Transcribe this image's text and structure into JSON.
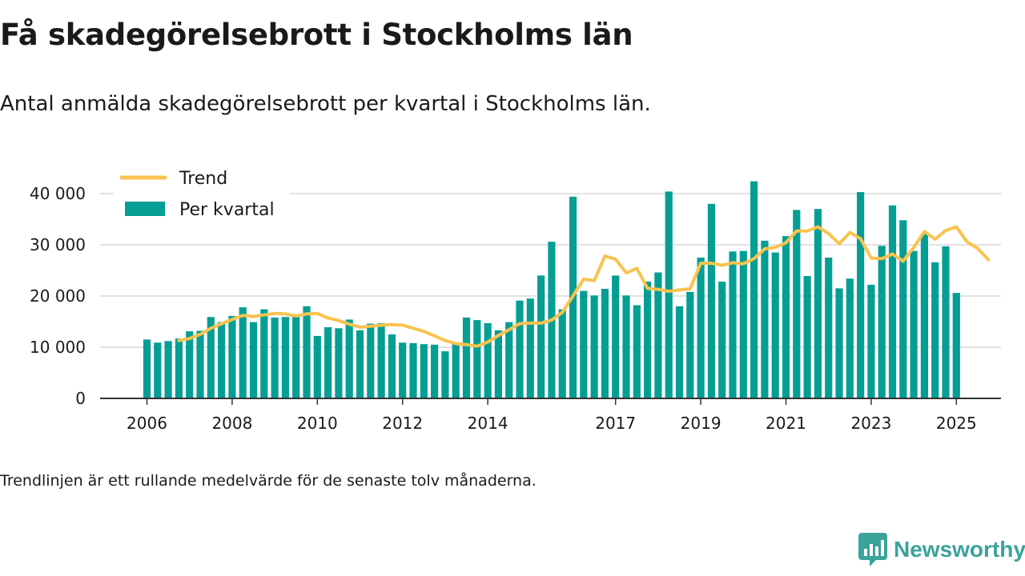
{
  "header": {
    "title": "Få skadegörelsebrott i Stockholms län",
    "subtitle": "Antal anmälda skadegörelsebrott per kvartal i Stockholms län."
  },
  "footer": {
    "note": "Trendlinjen är ett rullande medelvärde för de senaste tolv månaderna.",
    "brand": "Newsworthy"
  },
  "colors": {
    "bar": "#069e94",
    "trend": "#f8c350",
    "grid": "#d9d9d9",
    "axis": "#333333",
    "brand": "#3aa39a"
  },
  "chart_data": {
    "type": "bar",
    "x_unit": "quarter",
    "start_quarter": "2006 Q1",
    "yticks": [
      0,
      10000,
      20000,
      30000,
      40000
    ],
    "ytick_labels": [
      "0",
      "10 000",
      "20 000",
      "30 000",
      "40 000"
    ],
    "xtick_labels": [
      {
        "year": 2006,
        "label": "2006"
      },
      {
        "year": 2008,
        "label": "2008"
      },
      {
        "year": 2010,
        "label": "2010"
      },
      {
        "year": 2012,
        "label": "2012"
      },
      {
        "year": 2014,
        "label": "2014"
      },
      {
        "year": 2017,
        "label": "2017"
      },
      {
        "year": 2019,
        "label": "2019"
      },
      {
        "year": 2021,
        "label": "2021"
      },
      {
        "year": 2023,
        "label": "2023"
      },
      {
        "year": 2025,
        "label": "2025"
      }
    ],
    "ylim": [
      0,
      43000
    ],
    "grid": true,
    "legend_position": "top-left",
    "series": [
      {
        "name": "Per kvartal",
        "kind": "bar",
        "values": [
          11500,
          10900,
          11200,
          11700,
          13100,
          13200,
          15900,
          14900,
          16100,
          17800,
          14900,
          17400,
          15800,
          15900,
          16200,
          18000,
          12200,
          13900,
          13700,
          15400,
          13300,
          14600,
          14700,
          12500,
          10900,
          10800,
          10600,
          10500,
          9200,
          10800,
          15800,
          15300,
          14700,
          13300,
          14900,
          19100,
          19500,
          24000,
          30600,
          17400,
          39400,
          21000,
          20100,
          21400,
          24000,
          20100,
          18200,
          22800,
          24600,
          40400,
          18000,
          20800,
          27500,
          38000,
          22800,
          28700,
          28800,
          42400,
          30800,
          28500,
          31700,
          36800,
          23900,
          37000,
          27500,
          21500,
          23400,
          40300,
          22200,
          29800,
          37700,
          34800,
          28800,
          32100,
          26600,
          29700,
          20600
        ]
      },
      {
        "name": "Trend",
        "kind": "line",
        "start_index": 3,
        "values": [
          11300,
          11700,
          12500,
          13700,
          14600,
          15400,
          16200,
          16000,
          16300,
          16600,
          16500,
          16100,
          16500,
          16600,
          15700,
          15200,
          14500,
          13900,
          14100,
          14300,
          14400,
          14300,
          13700,
          13100,
          12200,
          11300,
          10700,
          10500,
          10200,
          11000,
          12300,
          13400,
          14600,
          14700,
          14700,
          15300,
          16800,
          20000,
          23300,
          23000,
          27800,
          27200,
          24500,
          25400,
          21500,
          21300,
          20900,
          21200,
          21400,
          26400,
          26400,
          26000,
          26500,
          26300,
          27300,
          29200,
          29500,
          30400,
          32700,
          32700,
          33500,
          32200,
          30200,
          32400,
          31200,
          27400,
          27300,
          28200,
          26800,
          29500,
          32600,
          31100,
          32800,
          33500,
          30600,
          29300,
          27100
        ]
      }
    ]
  }
}
